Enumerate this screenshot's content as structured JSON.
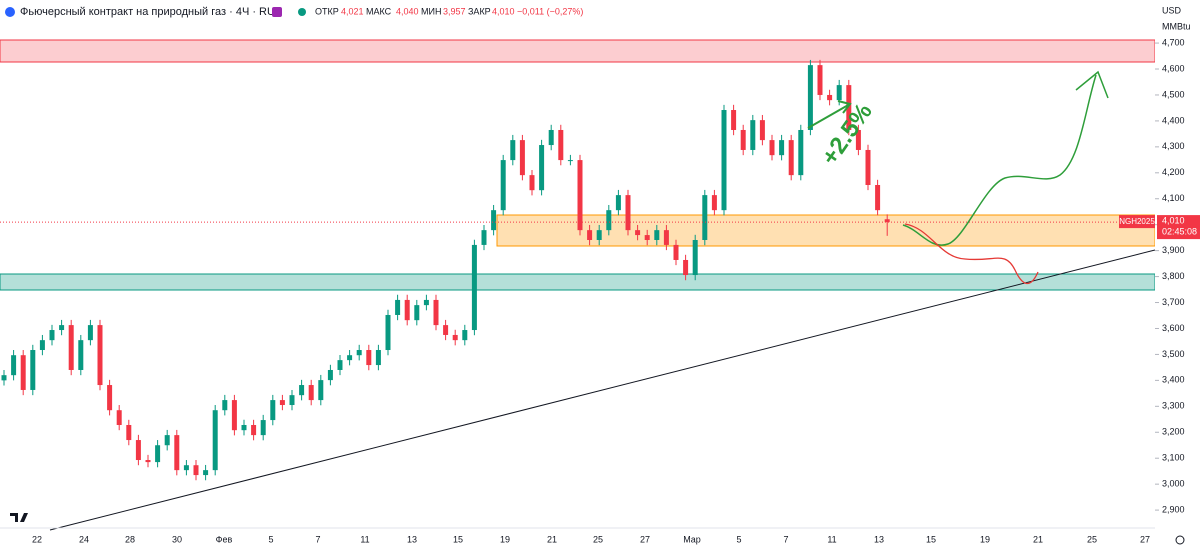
{
  "chart_data": {
    "type": "candlestick",
    "title": "Фьючерсный контракт на природный газ · 4Ч · RUS",
    "ohlc_labels": {
      "open_label": "ОТКР",
      "open": "4,021",
      "high_label": "МАКС",
      "high": "4,040",
      "low_label": "МИН",
      "low": "3,957",
      "close_label": "ЗАКР",
      "close": "4,010",
      "change": "−0,011 (−0,27%)"
    },
    "currency": "USD",
    "unit": "MMBtu",
    "symbol": "NGH2025",
    "last_price_label": "4,010",
    "countdown": "02:45:08",
    "annotation": "+2.5%",
    "up_color": "#089981",
    "down_color": "#f23645",
    "x_labels": [
      "22",
      "24",
      "28",
      "30",
      "Фев",
      "5",
      "7",
      "11",
      "13",
      "15",
      "19",
      "21",
      "25",
      "27",
      "Мар",
      "5",
      "7",
      "11",
      "13",
      "15",
      "19",
      "21",
      "25",
      "27"
    ],
    "open": [
      3400,
      3420,
      3497,
      3363,
      3517,
      3555,
      3594,
      3613,
      3440,
      3555,
      3613,
      3382,
      3285,
      3228,
      3170,
      3093,
      3085,
      3150,
      3189,
      3054,
      3073,
      3035,
      3054,
      3285,
      3324,
      3208,
      3228,
      3189,
      3247,
      3324,
      3305,
      3343,
      3382,
      3324,
      3401,
      3440,
      3478,
      3497,
      3517,
      3459,
      3517,
      3652,
      3710,
      3632,
      3690,
      3710,
      3613,
      3575,
      3555,
      3594,
      3922,
      3979,
      4056,
      4249,
      4326,
      4191,
      4133,
      4307,
      4365,
      4249,
      4249,
      3979,
      3941,
      3979,
      4056,
      4114,
      3979,
      3960,
      3941,
      3979,
      3922,
      3864,
      3806,
      3941,
      4114,
      4056,
      4442,
      4365,
      4288,
      4403,
      4326,
      4268,
      4326,
      4191,
      4365,
      4615,
      4500,
      4480,
      4538,
      4365,
      4288,
      4153,
      4021
    ],
    "high": [
      3440,
      3517,
      3517,
      3537,
      3575,
      3614,
      3633,
      3633,
      3575,
      3633,
      3633,
      3402,
      3305,
      3248,
      3190,
      3113,
      3170,
      3209,
      3209,
      3093,
      3093,
      3074,
      3305,
      3344,
      3344,
      3248,
      3248,
      3267,
      3344,
      3344,
      3363,
      3402,
      3402,
      3421,
      3460,
      3498,
      3517,
      3537,
      3537,
      3537,
      3672,
      3730,
      3730,
      3710,
      3730,
      3730,
      3633,
      3595,
      3614,
      3942,
      3999,
      4076,
      4269,
      4346,
      4346,
      4211,
      4327,
      4385,
      4385,
      4269,
      4269,
      3999,
      3999,
      4076,
      4134,
      4134,
      3999,
      3980,
      3999,
      3999,
      3942,
      3884,
      3961,
      4134,
      4134,
      4462,
      4462,
      4385,
      4423,
      4423,
      4346,
      4346,
      4346,
      4385,
      4635,
      4635,
      4520,
      4558,
      4558,
      4385,
      4308,
      4173,
      4040
    ],
    "low": [
      3380,
      3400,
      3343,
      3343,
      3497,
      3535,
      3574,
      3420,
      3420,
      3535,
      3362,
      3265,
      3208,
      3150,
      3073,
      3065,
      3065,
      3130,
      3034,
      3034,
      3015,
      3015,
      3034,
      3265,
      3188,
      3188,
      3169,
      3169,
      3227,
      3285,
      3285,
      3323,
      3304,
      3304,
      3381,
      3420,
      3458,
      3477,
      3439,
      3439,
      3497,
      3632,
      3612,
      3612,
      3670,
      3593,
      3555,
      3535,
      3535,
      3574,
      3902,
      3959,
      4036,
      4229,
      4171,
      4113,
      4113,
      4287,
      4229,
      4229,
      3959,
      3921,
      3921,
      3959,
      4036,
      3959,
      3940,
      3921,
      3921,
      3902,
      3844,
      3786,
      3786,
      3921,
      4036,
      4036,
      4345,
      4268,
      4268,
      4306,
      4248,
      4248,
      4171,
      4171,
      4345,
      4480,
      4460,
      4460,
      4345,
      4268,
      4133,
      4036,
      3957
    ],
    "close": [
      3420,
      3497,
      3363,
      3517,
      3555,
      3594,
      3613,
      3440,
      3555,
      3613,
      3382,
      3285,
      3228,
      3170,
      3093,
      3085,
      3150,
      3189,
      3054,
      3073,
      3035,
      3054,
      3285,
      3324,
      3208,
      3228,
      3189,
      3247,
      3324,
      3305,
      3343,
      3382,
      3324,
      3401,
      3440,
      3478,
      3497,
      3517,
      3459,
      3517,
      3652,
      3710,
      3632,
      3690,
      3710,
      3613,
      3575,
      3555,
      3594,
      3922,
      3979,
      4056,
      4249,
      4326,
      4191,
      4133,
      4307,
      4365,
      4249,
      4249,
      3979,
      3941,
      3979,
      4056,
      4114,
      3979,
      3960,
      3941,
      3979,
      3922,
      3864,
      3806,
      3941,
      4114,
      4056,
      4442,
      4365,
      4288,
      4403,
      4326,
      4268,
      4326,
      4191,
      4365,
      4615,
      4500,
      4480,
      4538,
      4365,
      4288,
      4153,
      4056,
      4010
    ],
    "ylim": [
      2831,
      4866
    ],
    "yticks": [
      {
        "value": 2900,
        "label": "2,900"
      },
      {
        "value": 3000,
        "label": "3,000"
      },
      {
        "value": 3100,
        "label": "3,100"
      },
      {
        "value": 3200,
        "label": "3,200"
      },
      {
        "value": 3300,
        "label": "3,300"
      },
      {
        "value": 3400,
        "label": "3,400"
      },
      {
        "value": 3500,
        "label": "3,500"
      },
      {
        "value": 3600,
        "label": "3,600"
      },
      {
        "value": 3700,
        "label": "3,700"
      },
      {
        "value": 3800,
        "label": "3,800"
      },
      {
        "value": 3900,
        "label": "3,900"
      },
      {
        "value": 4000,
        "label": "4,000"
      },
      {
        "value": 4100,
        "label": "4,100"
      },
      {
        "value": 4200,
        "label": "4,200"
      },
      {
        "value": 4300,
        "label": "4,300"
      },
      {
        "value": 4400,
        "label": "4,400"
      },
      {
        "value": 4500,
        "label": "4,500"
      },
      {
        "value": 4600,
        "label": "4,600"
      },
      {
        "value": 4700,
        "label": "4,700"
      }
    ],
    "grid": false
  }
}
